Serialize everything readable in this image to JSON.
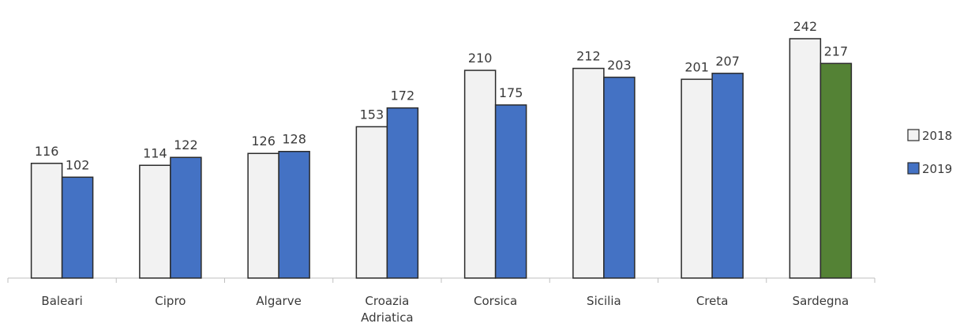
{
  "chart_data": {
    "type": "bar",
    "categories": [
      [
        "Baleari"
      ],
      [
        "Cipro"
      ],
      [
        "Algarve"
      ],
      [
        "Croazia",
        "Adriatica"
      ],
      [
        "Corsica"
      ],
      [
        "Sicilia"
      ],
      [
        "Creta"
      ],
      [
        "Sardegna"
      ]
    ],
    "series": [
      {
        "name": "2018",
        "color": "#f2f2f2",
        "stroke": "#2b2b2b",
        "values": [
          116,
          114,
          126,
          153,
          210,
          212,
          201,
          242
        ]
      },
      {
        "name": "2019",
        "color": "#4472c4",
        "stroke": "#2b2b2b",
        "values": [
          102,
          122,
          128,
          172,
          175,
          203,
          207,
          217
        ],
        "highlight": {
          "index": 7,
          "color": "#548235"
        }
      }
    ],
    "value_labels": true,
    "ylim": [
      0,
      250
    ],
    "grid": false,
    "y_axis_visible": false,
    "legend": "right"
  }
}
